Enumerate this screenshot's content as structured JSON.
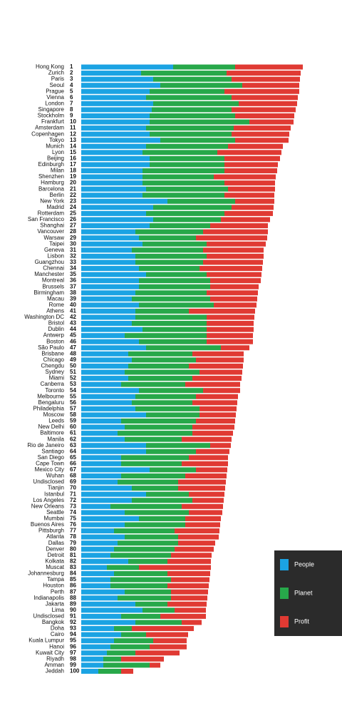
{
  "chart_data": {
    "type": "stacked-bar-horizontal",
    "categories": [
      "Hong Kong",
      "Zurich",
      "Paris",
      "Seoul",
      "Prague",
      "Vienna",
      "London",
      "Singapore",
      "Stockholm",
      "Frankfurt",
      "Amsterdam",
      "Copenhagen",
      "Tokyo",
      "Munich",
      "Lyon",
      "Beijing",
      "Edinburgh",
      "Milan",
      "Shenzhen",
      "Hamburg",
      "Barcelona",
      "Berlin",
      "New York",
      "Madrid",
      "Rotterdam",
      "San Francisco",
      "Shanghai",
      "Vancouver",
      "Warsaw",
      "Taipei",
      "Geneva",
      "Lisbon",
      "Guangzhou",
      "Chennai",
      "Manchester",
      "Montreal",
      "Brussels",
      "Birmingham",
      "Macau",
      "Rome",
      "Athens",
      "Washington DC",
      "Bristol",
      "Dublin",
      "Antwerp",
      "Boston",
      "São Paulo",
      "Brisbane",
      "Chicago",
      "Chengdu",
      "Sydney",
      "Miami",
      "Canberra",
      "Toronto",
      "Melbourne",
      "Bengaluru",
      "Philadelphia",
      "Moscow",
      "Leeds",
      "New Delhi",
      "Baltimore",
      "Manila",
      "Rio de Janeiro",
      "Santiago",
      "San Diego",
      "Cape Town",
      "Mexico City",
      "Wuhan",
      "Undisclosed",
      "Tianjin",
      "Istanbul",
      "Los Angeles",
      "New Orleans",
      "Seattle",
      "Mumbai",
      "Buenos Aires",
      "Pittsburgh",
      "Atlanta",
      "Dallas",
      "Denver",
      "Detroit",
      "Kolkata",
      "Muscat",
      "Johannesburg",
      "Tampa",
      "Houston",
      "Perth",
      "Indianapolis",
      "Jakarta",
      "Lima",
      "Undisclosed",
      "Bangkok",
      "Doha",
      "Cairo",
      "Kuala Lumpur",
      "Hanoi",
      "Kuwait City",
      "Riyadh",
      "Amman",
      "Jeddah"
    ],
    "ranks": [
      1,
      2,
      3,
      4,
      5,
      6,
      7,
      8,
      9,
      10,
      11,
      12,
      13,
      14,
      15,
      16,
      17,
      18,
      19,
      20,
      21,
      22,
      23,
      24,
      25,
      26,
      27,
      28,
      29,
      30,
      31,
      32,
      33,
      34,
      35,
      36,
      37,
      38,
      39,
      40,
      41,
      42,
      43,
      44,
      45,
      46,
      47,
      48,
      49,
      50,
      51,
      52,
      53,
      54,
      55,
      56,
      57,
      58,
      59,
      60,
      61,
      62,
      63,
      64,
      65,
      66,
      67,
      68,
      69,
      70,
      71,
      72,
      73,
      74,
      75,
      76,
      77,
      78,
      79,
      80,
      81,
      82,
      83,
      84,
      85,
      86,
      87,
      88,
      89,
      90,
      91,
      92,
      93,
      94,
      95,
      96,
      97,
      98,
      99,
      100
    ],
    "series": [
      {
        "name": "People",
        "color": "#1ba3e3",
        "values": [
          129,
          84,
          101,
          111,
          96,
          91,
          101,
          99,
          96,
          96,
          91,
          96,
          111,
          91,
          86,
          96,
          96,
          86,
          86,
          86,
          91,
          86,
          121,
          101,
          91,
          101,
          96,
          76,
          81,
          86,
          71,
          76,
          76,
          81,
          91,
          81,
          81,
          76,
          71,
          81,
          76,
          76,
          71,
          86,
          61,
          81,
          91,
          66,
          71,
          66,
          61,
          66,
          56,
          81,
          76,
          71,
          76,
          91,
          56,
          61,
          51,
          61,
          91,
          91,
          56,
          56,
          96,
          56,
          51,
          71,
          91,
          71,
          41,
          61,
          81,
          61,
          46,
          61,
          51,
          46,
          41,
          66,
          36,
          46,
          41,
          41,
          61,
          51,
          76,
          86,
          56,
          76,
          46,
          56,
          46,
          41,
          36,
          31,
          31,
          24
        ]
      },
      {
        "name": "Planet",
        "color": "#27a84a",
        "values": [
          87,
          120,
          110,
          115,
          105,
          120,
          120,
          112,
          120,
          140,
          123,
          115,
          105,
          115,
          105,
          105,
          105,
          115,
          100,
          115,
          115,
          115,
          95,
          110,
          110,
          95,
          85,
          95,
          80,
          90,
          100,
          100,
          95,
          85,
          85,
          100,
          100,
          100,
          110,
          105,
          75,
          100,
          105,
          90,
          115,
          95,
          105,
          90,
          90,
          85,
          105,
          90,
          90,
          90,
          85,
          85,
          90,
          75,
          105,
          95,
          105,
          80,
          90,
          70,
          95,
          85,
          65,
          90,
          85,
          65,
          60,
          85,
          100,
          90,
          65,
          85,
          85,
          75,
          85,
          85,
          85,
          55,
          45,
          75,
          85,
          80,
          65,
          75,
          45,
          45,
          55,
          65,
          25,
          35,
          55,
          55,
          40,
          25,
          65,
          32
        ]
      },
      {
        "name": "Profit",
        "color": "#e03a33",
        "values": [
          95,
          104,
          96,
          80,
          105,
          93,
          82,
          90,
          83,
          62,
          80,
          81,
          75,
          77,
          90,
          78,
          75,
          74,
          87,
          71,
          66,
          70,
          55,
          59,
          68,
          69,
          81,
          91,
          100,
          83,
          85,
          80,
          84,
          88,
          77,
          71,
          68,
          72,
          66,
          60,
          93,
          67,
          66,
          66,
          65,
          65,
          40,
          72,
          67,
          76,
          60,
          69,
          77,
          52,
          59,
          63,
          52,
          51,
          55,
          59,
          57,
          70,
          29,
          47,
          55,
          65,
          44,
          58,
          67,
          66,
          50,
          44,
          58,
          47,
          50,
          49,
          63,
          57,
          52,
          55,
          57,
          61,
          101,
          60,
          54,
          58,
          52,
          51,
          55,
          44,
          64,
          28,
          87,
          59,
          47,
          52,
          62,
          60,
          15,
          17
        ]
      }
    ],
    "legend_position": "bottom-right"
  }
}
